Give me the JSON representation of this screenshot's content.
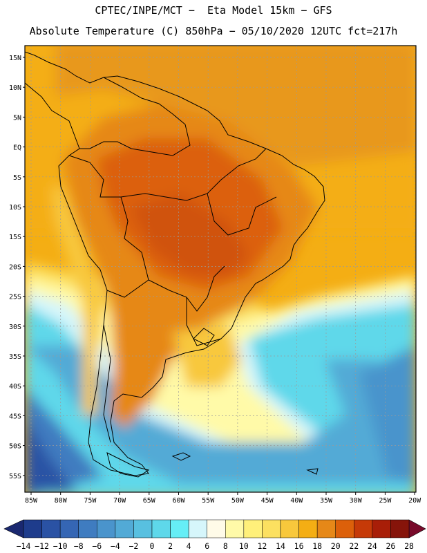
{
  "title": {
    "line1": "CPTEC/INPE/MCT −  Eta Model 15km − GFS",
    "line2": "Absolute Temperature (C) 850hPa − 05/10/2020 12UTC fct=217h"
  },
  "map": {
    "region": "South America",
    "lat_labels": [
      "15N",
      "10N",
      "5N",
      "EQ",
      "5S",
      "10S",
      "15S",
      "20S",
      "25S",
      "30S",
      "35S",
      "40S",
      "45S",
      "50S",
      "55S"
    ],
    "lon_labels": [
      "85W",
      "80W",
      "75W",
      "70W",
      "65W",
      "60W",
      "55W",
      "50W",
      "45W",
      "40W",
      "35W",
      "30W",
      "25W",
      "20W"
    ]
  },
  "colorbar": {
    "labels": [
      "−14",
      "−12",
      "−10",
      "−8",
      "−6",
      "−4",
      "−2",
      "0",
      "2",
      "4",
      "6",
      "8",
      "10",
      "12",
      "14",
      "16",
      "18",
      "20",
      "22",
      "24",
      "26",
      "28"
    ],
    "colors": [
      "#1e3c8c",
      "#2a52a4",
      "#3566b4",
      "#3f7cc0",
      "#4a94cc",
      "#52aad6",
      "#58c0e0",
      "#5ed8ea",
      "#66eef6",
      "#d6f6fb",
      "#fffbe8",
      "#fffaa8",
      "#fff07a",
      "#fce060",
      "#f8c83c",
      "#f4ae14",
      "#e68818",
      "#dc600a",
      "#c63a08",
      "#a81e08",
      "#86140a"
    ],
    "left_arrow_color": "#1a2870",
    "right_arrow_color": "#780a2a"
  }
}
